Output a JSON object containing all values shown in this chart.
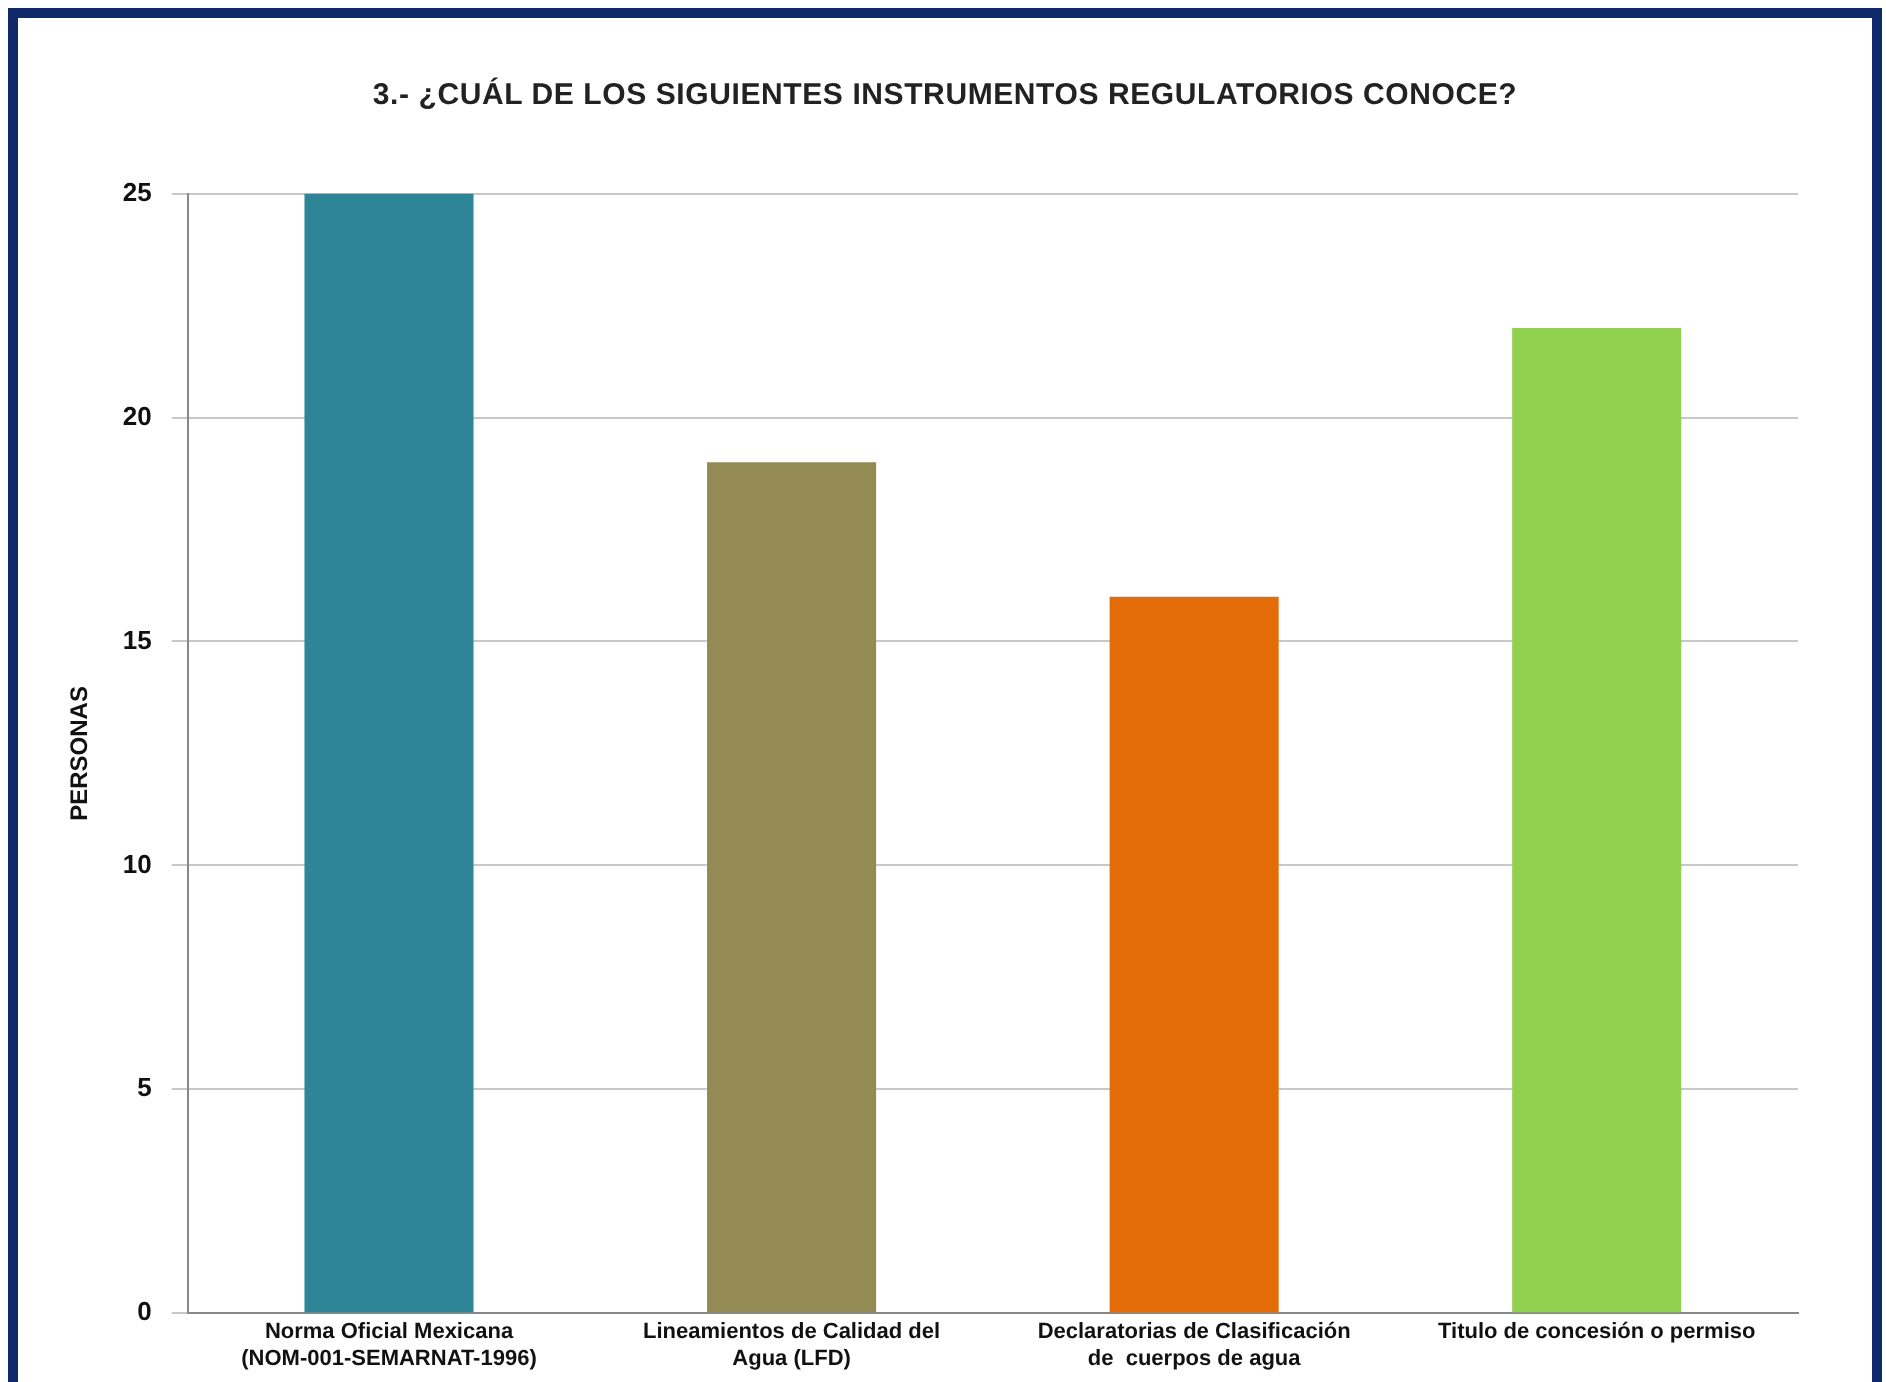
{
  "chart_data": {
    "type": "bar",
    "title": "3.- ¿CUÁL DE LOS SIGUIENTES INSTRUMENTOS REGULATORIOS CONOCE?",
    "ylabel": "PERSONAS",
    "categories": [
      "Norma Oficial Mexicana (NOM-001-SEMARNAT-1996)",
      "Lineamientos de Calidad del Agua (LFD)",
      "Declaratorias de Clasificación de  cuerpos de agua",
      "Titulo de concesión o permiso"
    ],
    "values": [
      25,
      19,
      16,
      22
    ],
    "colors": [
      "#2e8597",
      "#948a54",
      "#e36c09",
      "#92d050"
    ],
    "ylim": [
      0,
      25
    ],
    "yticks": [
      0,
      5,
      10,
      15,
      20,
      25
    ],
    "grid": "y",
    "legend": false
  }
}
